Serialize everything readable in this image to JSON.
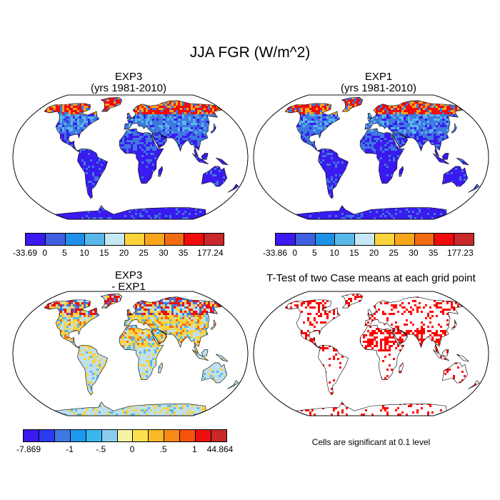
{
  "main_title": "JJA FGR (W/m^2)",
  "panels": {
    "top_left": {
      "title": "EXP3",
      "subtitle": "(yrs 1981-2010)"
    },
    "top_right": {
      "title": "EXP1",
      "subtitle": "(yrs 1981-2010)"
    },
    "bottom_left": {
      "title": "EXP3",
      "subtitle": "- EXP1"
    },
    "bottom_right": {
      "title": "T-Test of two Case means at each grid point"
    }
  },
  "colorbars": {
    "top_left": {
      "colors": [
        "#3a1aef",
        "#3f5fe0",
        "#1e90e8",
        "#58b8ea",
        "#c6e8f4",
        "#fbd33a",
        "#f9a51c",
        "#f26b12",
        "#f00c0c",
        "#c8282a"
      ],
      "labels": [
        "-33.69",
        "0",
        "5",
        "10",
        "15",
        "20",
        "25",
        "30",
        "35",
        "177.24"
      ]
    },
    "top_right": {
      "colors": [
        "#3a1aef",
        "#3f5fe0",
        "#1e90e8",
        "#58b8ea",
        "#c6e8f4",
        "#fbd33a",
        "#f9a51c",
        "#f26b12",
        "#f00c0c",
        "#c8282a"
      ],
      "labels": [
        "-33.86",
        "0",
        "5",
        "10",
        "15",
        "20",
        "25",
        "30",
        "35",
        "177.23"
      ]
    },
    "bottom_left": {
      "colors": [
        "#3a1aef",
        "#2a3af0",
        "#3f78e0",
        "#1e98ee",
        "#3ab8ee",
        "#88ccf0",
        "#f6f3a2",
        "#fde050",
        "#fbb828",
        "#f98a18",
        "#f5520c",
        "#ee1010",
        "#c8282a"
      ],
      "labels": [
        "-7.869",
        "-1",
        "-.5",
        "0",
        ".5",
        "1",
        "44.864"
      ]
    }
  },
  "significance_note": "Cells are significant at 0.1 level",
  "map_colors": {
    "ocean": "#ffffff",
    "land_cold": "#3a1aef",
    "land_mid": "#3f78e0",
    "land_warm": "#58b8ea",
    "arctic_hot": "#f00c0c",
    "arctic_orange": "#f9a51c",
    "diff_base": "#bfe0ee",
    "diff_pos": "#fbd33a",
    "diff_hot": "#f26b12",
    "significant": "#ff0000"
  }
}
